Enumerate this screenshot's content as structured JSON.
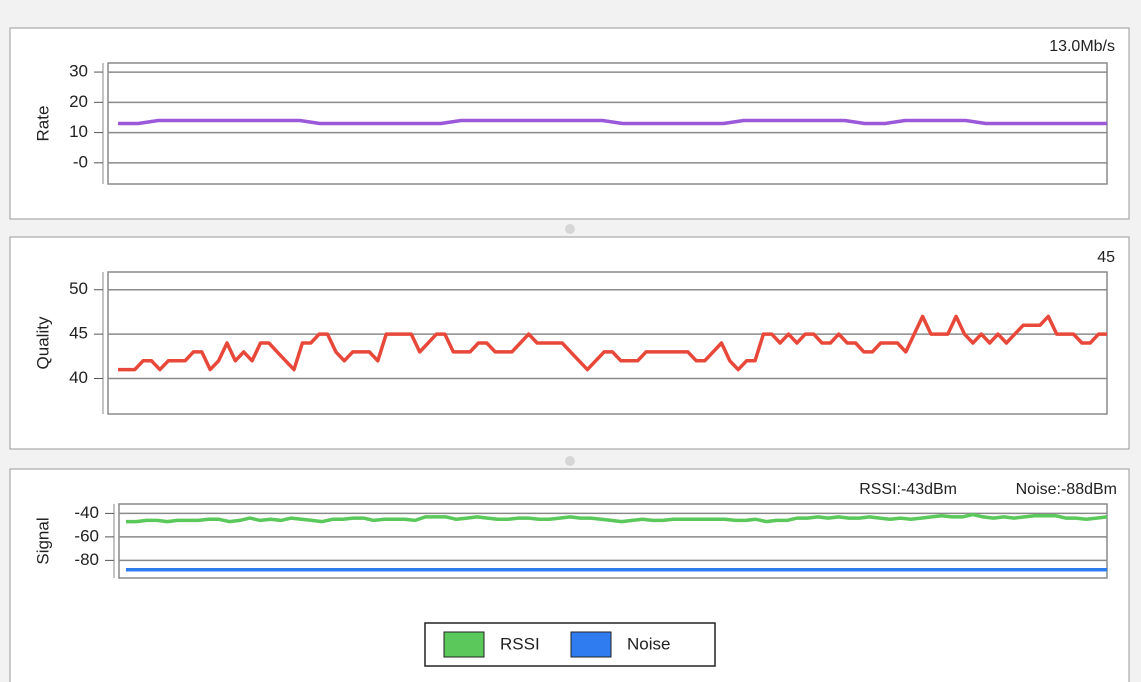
{
  "chart_data": [
    {
      "type": "line",
      "ylabel": "Rate",
      "current": "13.0Mb/s",
      "ylim": [
        -7,
        33
      ],
      "yticks": [
        30,
        20,
        10,
        {
          "value": 0,
          "label": "-0"
        }
      ],
      "grid": true,
      "series": [
        {
          "name": "Rate",
          "color": "#9b59d9",
          "values": [
            13,
            13,
            14,
            14,
            14,
            14,
            14,
            14,
            14,
            14,
            13,
            13,
            13,
            13,
            13,
            13,
            13,
            14,
            14,
            14,
            14,
            14,
            14,
            14,
            14,
            13,
            13,
            13,
            13,
            13,
            13,
            14,
            14,
            14,
            14,
            14,
            14,
            13,
            13,
            14,
            14,
            14,
            14,
            13,
            13,
            13,
            13,
            13,
            13,
            13
          ]
        }
      ]
    },
    {
      "type": "line",
      "ylabel": "Quality",
      "current": "45",
      "ylim": [
        36,
        52
      ],
      "yticks": [
        50,
        45,
        40
      ],
      "grid": true,
      "series": [
        {
          "name": "Quality",
          "color": "#e8483a",
          "values": [
            41,
            41,
            41,
            42,
            42,
            41,
            42,
            42,
            42,
            43,
            43,
            41,
            42,
            44,
            42,
            43,
            42,
            44,
            44,
            43,
            42,
            41,
            44,
            44,
            45,
            45,
            43,
            42,
            43,
            43,
            43,
            42,
            45,
            45,
            45,
            45,
            43,
            44,
            45,
            45,
            43,
            43,
            43,
            44,
            44,
            43,
            43,
            43,
            44,
            45,
            44,
            44,
            44,
            44,
            43,
            42,
            41,
            42,
            43,
            43,
            42,
            42,
            42,
            43,
            43,
            43,
            43,
            43,
            43,
            42,
            42,
            43,
            44,
            42,
            41,
            42,
            42,
            45,
            45,
            44,
            45,
            44,
            45,
            45,
            44,
            44,
            45,
            44,
            44,
            43,
            43,
            44,
            44,
            44,
            43,
            45,
            47,
            45,
            45,
            45,
            47,
            45,
            44,
            45,
            44,
            45,
            44,
            45,
            46,
            46,
            46,
            47,
            45,
            45,
            45,
            44,
            44,
            45,
            45
          ]
        }
      ]
    },
    {
      "type": "line",
      "ylabel": "Signal",
      "ylim": [
        -95,
        -32
      ],
      "yticks": [
        -40,
        -60,
        -80
      ],
      "grid": true,
      "legend": "bottom",
      "series": [
        {
          "name": "RSSI",
          "current": "RSSI:-43dBm",
          "color": "#5ac85a",
          "values": [
            -47,
            -47,
            -46,
            -46,
            -47,
            -46,
            -46,
            -46,
            -45,
            -45,
            -47,
            -46,
            -44,
            -46,
            -45,
            -46,
            -44,
            -45,
            -46,
            -47,
            -45,
            -45,
            -44,
            -44,
            -46,
            -45,
            -45,
            -45,
            -46,
            -43,
            -43,
            -43,
            -45,
            -44,
            -43,
            -44,
            -45,
            -45,
            -44,
            -44,
            -45,
            -45,
            -44,
            -43,
            -44,
            -44,
            -45,
            -46,
            -47,
            -46,
            -45,
            -46,
            -46,
            -45,
            -45,
            -45,
            -45,
            -45,
            -45,
            -46,
            -46,
            -45,
            -47,
            -46,
            -46,
            -44,
            -44,
            -43,
            -44,
            -43,
            -44,
            -44,
            -43,
            -44,
            -45,
            -44,
            -45,
            -44,
            -43,
            -42,
            -43,
            -43,
            -41,
            -43,
            -44,
            -43,
            -44,
            -43,
            -42,
            -42,
            -42,
            -44,
            -44,
            -45,
            -44,
            -43
          ]
        },
        {
          "name": "Noise",
          "current": "Noise:-88dBm",
          "color": "#2f7cf0",
          "values": [
            -88,
            -88,
            -88,
            -88,
            -88,
            -88,
            -88,
            -88,
            -88,
            -88,
            -88,
            -88
          ]
        }
      ]
    }
  ]
}
